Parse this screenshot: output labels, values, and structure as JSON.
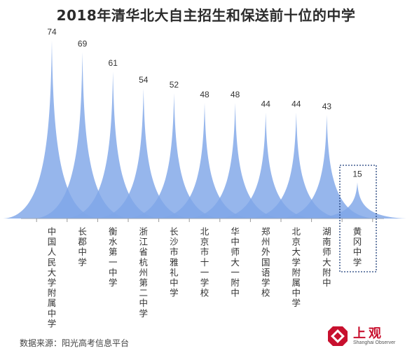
{
  "chart_data": {
    "type": "area",
    "title": "2018年清华北大自主招生和保送前十位的中学",
    "categories": [
      "中国人民大学附属中学",
      "长郡中学",
      "衡水第一中学",
      "浙江省杭州第二中学",
      "长沙市雅礼中学",
      "北京市十一学校",
      "华中师大一附中",
      "郑州外国语学校",
      "北京大学附属中学",
      "湖南师大附中",
      "黄冈中学"
    ],
    "values": [
      74,
      69,
      61,
      54,
      52,
      48,
      48,
      44,
      44,
      43,
      15
    ],
    "highlighted_category": "黄冈中学",
    "fill_color": "#7fa6e8",
    "highlight_box_color": "#1f3f7a",
    "grid": false
  },
  "source": "数据来源：阳光高考信息平台",
  "logo": {
    "name_cn": "上观",
    "name_en": "Shanghai Observer",
    "color": "#c8102e"
  }
}
